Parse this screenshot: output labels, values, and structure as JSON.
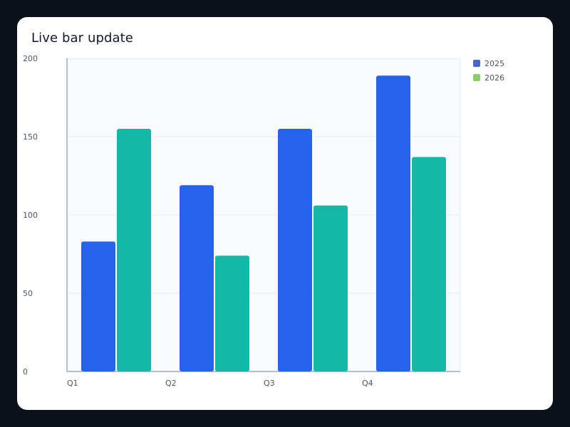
{
  "title": "Live bar update",
  "chart_data": {
    "type": "bar",
    "title": "Live bar update",
    "categories": [
      "Q1",
      "Q2",
      "Q3",
      "Q4"
    ],
    "series": [
      {
        "name": "2025",
        "values": [
          83,
          119,
          155,
          189
        ],
        "bar_color": "#2563eb",
        "legend_color": "#4468c9"
      },
      {
        "name": "2026",
        "values": [
          155,
          74,
          106,
          137
        ],
        "bar_color": "#14b8a6",
        "legend_color": "#8ccb6e"
      }
    ],
    "ylim": [
      0,
      200
    ],
    "yticks": [
      0,
      50,
      100,
      150,
      200
    ],
    "xlabel": "",
    "ylabel": "",
    "grid": true,
    "legend_position": "right-top"
  }
}
